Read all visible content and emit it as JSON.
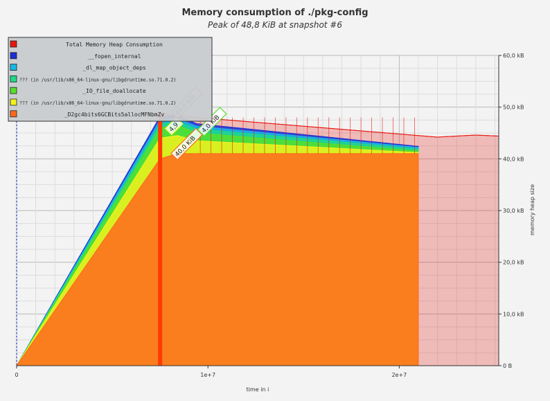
{
  "chart_data": {
    "type": "area",
    "title": "Memory consumption of ./pkg-config",
    "subtitle": "Peak of 48,8 KiB at snapshot #6",
    "xlabel": "time in i",
    "ylabel": "memory heap size",
    "xlim": [
      0,
      25200000
    ],
    "ylim": [
      0,
      60000
    ],
    "x_ticks": [
      {
        "value": 0,
        "label": "0"
      },
      {
        "value": 10000000,
        "label": "1e+7"
      },
      {
        "value": 20000000,
        "label": "2e+7"
      }
    ],
    "y_ticks": [
      {
        "value": 0,
        "label": "0 B"
      },
      {
        "value": 10000,
        "label": "10,0 kB"
      },
      {
        "value": 20000,
        "label": "20,0 kB"
      },
      {
        "value": 30000,
        "label": "30,0 kB"
      },
      {
        "value": 40000,
        "label": "40,0 kB"
      },
      {
        "value": 50000,
        "label": "50,0 kB"
      },
      {
        "value": 60000,
        "label": "60,0 kB"
      }
    ],
    "legend_position": "top-left",
    "series": [
      {
        "name": "_D2gc4bits6GCBits5allocMFNbmZv",
        "color": "#ff6a1e",
        "x": [
          0,
          7500000,
          8400000,
          9400000,
          21000000
        ],
        "y": [
          0,
          40000,
          41000,
          41000,
          41000
        ]
      },
      {
        "name": "??? (in /usr/lib/x86_64-linux-gnu/libgdruntime.so.71.0.2)",
        "color": "#f2f21c",
        "x": [
          0,
          7500000,
          8400000,
          9400000,
          21000000
        ],
        "y": [
          0,
          44000,
          44500,
          43500,
          41200
        ]
      },
      {
        "name": "_IO_file_doallocate",
        "color": "#55e02a",
        "x": [
          0,
          7500000,
          8400000,
          9400000,
          21000000
        ],
        "y": [
          0,
          46000,
          46500,
          45000,
          41500
        ]
      },
      {
        "name": "??? (in /usr/lib/x86_64-linux-gnu/libgdruntime.so.71.0.2)",
        "color": "#1fd98a",
        "x": [
          0,
          7500000,
          8400000,
          9400000,
          21000000
        ],
        "y": [
          0,
          46800,
          47200,
          45800,
          41900
        ]
      },
      {
        "name": "_dl_map_object_deps",
        "color": "#16b8e8",
        "x": [
          0,
          7500000,
          8400000,
          9400000,
          21000000
        ],
        "y": [
          0,
          47500,
          47800,
          46300,
          42200
        ]
      },
      {
        "name": "__fopen_internal",
        "color": "#1a2fd4",
        "x": [
          0,
          7500000,
          8400000,
          9400000,
          21000000
        ],
        "y": [
          0,
          48200,
          48400,
          46800,
          42400
        ]
      },
      {
        "name": "Total Memory Heap Consumption",
        "color": "#e8150f",
        "x": [
          0,
          6500000,
          7200000,
          7500000,
          9400000,
          21000000,
          22000000,
          24000000,
          25200000
        ],
        "y": [
          0,
          500,
          1000,
          48800,
          48000,
          44500,
          44200,
          44600,
          44400
        ]
      }
    ],
    "annotations": [
      {
        "label": "40,0 KiB",
        "color": "#ff6a1e",
        "x": 8300000,
        "y": 40200
      },
      {
        "label": "4,0 KiB",
        "color": "#55e02a",
        "x": 9700000,
        "y": 44800
      },
      {
        "label": "4,9",
        "color": "#f2f21c",
        "x": 8000000,
        "y": 45000
      },
      {
        "label": "48,8 KiB",
        "color": "#e8150f",
        "x": 8300000,
        "y": 48200
      }
    ]
  }
}
